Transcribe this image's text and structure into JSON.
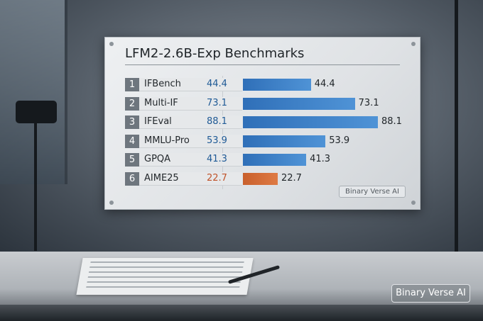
{
  "chart_data": {
    "type": "bar",
    "orientation": "horizontal",
    "title": "LFM2-2.6B-Exp Benchmarks",
    "categories": [
      "IFBench",
      "Multi-IF",
      "IFEval",
      "MMLU-Pro",
      "GPQA",
      "AIME25"
    ],
    "ranks": [
      "1",
      "2",
      "3",
      "4",
      "5",
      "6"
    ],
    "values": [
      44.4,
      73.1,
      88.1,
      53.9,
      41.3,
      22.7
    ],
    "value_labels": [
      "44.4",
      "73.1",
      "88.1",
      "53.9",
      "41.3",
      "22.7"
    ],
    "colors": [
      "#2f6fb8",
      "#2f6fb8",
      "#2f6fb8",
      "#2f6fb8",
      "#2f6fb8",
      "#c9602c"
    ],
    "value_text_colors": [
      "#1f5a96",
      "#1f5a96",
      "#1f5a96",
      "#1f5a96",
      "#1f5a96",
      "#c0532a"
    ],
    "grid": false,
    "legend": "none"
  },
  "panel_badge": "Binary Verse AI",
  "watermark": "Binary Verse AI"
}
